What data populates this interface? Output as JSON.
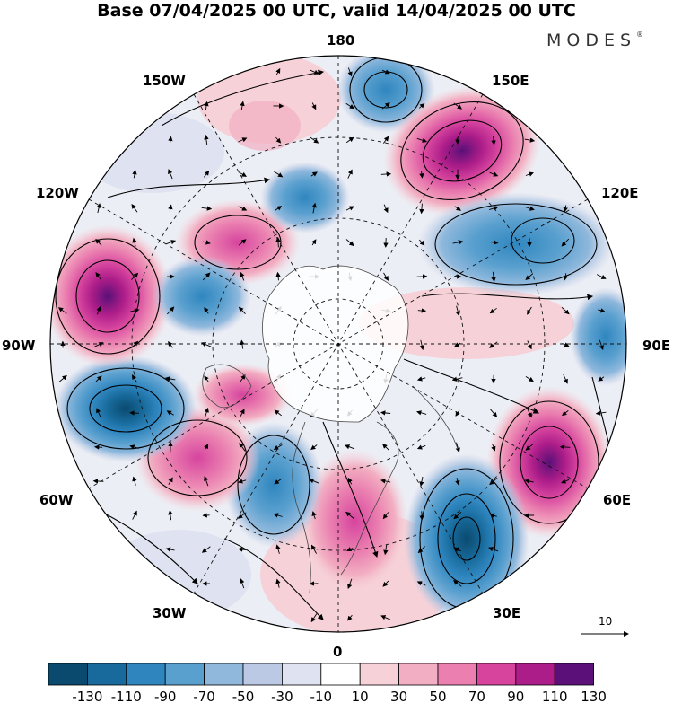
{
  "title": "Base 07/04/2025 00 UTC, valid 14/04/2025 00 UTC",
  "brand": "MODES",
  "brand_mark": "®",
  "longitude_labels": {
    "lon_180": "180",
    "lon_150w": "150W",
    "lon_150e": "150E",
    "lon_120w": "120W",
    "lon_120e": "120E",
    "lon_90w": "90W",
    "lon_90e": "90E",
    "lon_60w": "60W",
    "lon_60e": "60E",
    "lon_30w": "30W",
    "lon_30e": "30E",
    "lon_0": "0"
  },
  "reference_vector": {
    "value": "10"
  },
  "colorbar": {
    "ticks": [
      "-130",
      "-110",
      "-90",
      "-70",
      "-50",
      "-30",
      "-10",
      "10",
      "30",
      "50",
      "70",
      "90",
      "110",
      "130"
    ],
    "colors": [
      "#0b4a6f",
      "#176a9b",
      "#2f86bf",
      "#5aa0cf",
      "#8fb8dc",
      "#bcc9e4",
      "#dfe2f0",
      "#ffffff",
      "#f6d2d8",
      "#f2aec2",
      "#ea7fb0",
      "#d6449e",
      "#ad1d89",
      "#5a1078"
    ]
  },
  "anomaly_centers": [
    {
      "sign": "neg",
      "lat_deg": -1,
      "lon_deg": 0,
      "strength": 0.6,
      "label": "near 180 north"
    },
    {
      "sign": "pos",
      "strength": 1.0
    },
    {
      "sign": "pos",
      "strength": 0.7
    },
    {
      "sign": "pos",
      "strength": 0.9
    },
    {
      "sign": "neg",
      "strength": 0.6
    },
    {
      "sign": "neg",
      "strength": 0.8
    },
    {
      "sign": "neg",
      "strength": 0.9
    },
    {
      "sign": "neg",
      "strength": 0.6
    },
    {
      "sign": "pos",
      "strength": 0.9
    },
    {
      "sign": "neg",
      "strength": 1.0
    },
    {
      "sign": "pos",
      "strength": 0.6
    },
    {
      "sign": "neg",
      "strength": 0.6
    },
    {
      "sign": "pos",
      "strength": 0.6
    },
    {
      "sign": "pos",
      "strength": 0.5
    }
  ]
}
